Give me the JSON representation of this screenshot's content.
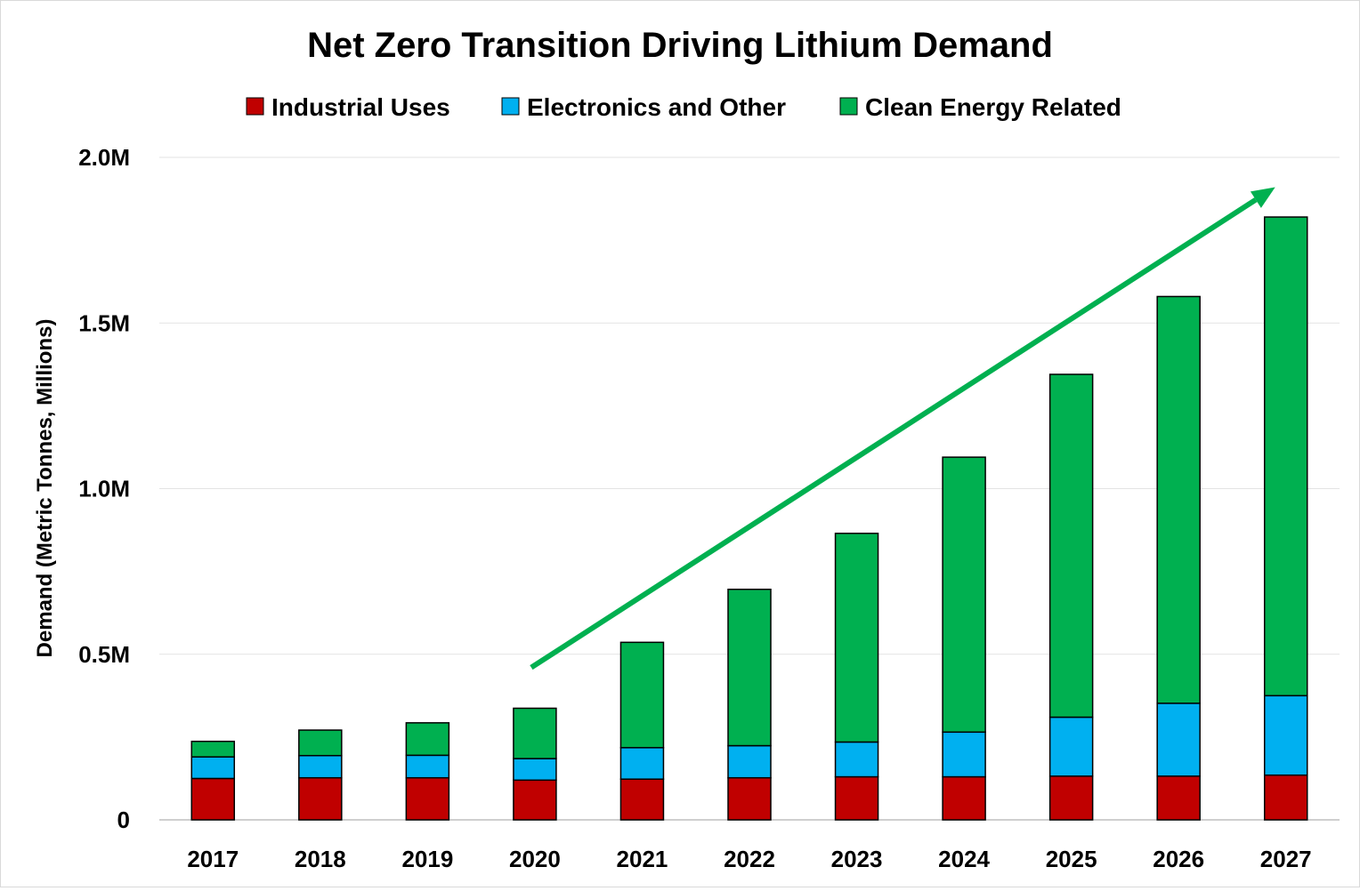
{
  "chart_data": {
    "type": "bar",
    "stacked": true,
    "title": "Net Zero Transition Driving Lithium Demand",
    "ylabel": "Demand (Metric Tonnes, Millions)",
    "xlabel": "",
    "categories": [
      "2017",
      "2018",
      "2019",
      "2020",
      "2021",
      "2022",
      "2023",
      "2024",
      "2025",
      "2026",
      "2027"
    ],
    "series": [
      {
        "name": "Industrial Uses",
        "color": "#c00000",
        "values": [
          0.125,
          0.127,
          0.127,
          0.12,
          0.123,
          0.127,
          0.13,
          0.13,
          0.132,
          0.132,
          0.135
        ]
      },
      {
        "name": "Electronics and Other",
        "color": "#00b0f0",
        "values": [
          0.065,
          0.067,
          0.068,
          0.065,
          0.095,
          0.097,
          0.105,
          0.135,
          0.178,
          0.22,
          0.24
        ]
      },
      {
        "name": "Clean Energy Related",
        "color": "#00b050",
        "values": [
          0.047,
          0.077,
          0.098,
          0.152,
          0.318,
          0.472,
          0.63,
          0.83,
          1.035,
          1.228,
          1.445
        ]
      }
    ],
    "ylim": [
      0,
      2.0
    ],
    "yticks": [
      0,
      0.5,
      1.0,
      1.5,
      2.0
    ],
    "ytick_labels": [
      "0",
      "0.5M",
      "1.0M",
      "1.5M",
      "2.0M"
    ],
    "grid": true,
    "legend_position": "top-center",
    "annotation": {
      "type": "trend-arrow",
      "color": "#00b050",
      "from": {
        "x": "2020",
        "y": 0.46
      },
      "to": {
        "x": "2027",
        "y": 1.91
      }
    }
  }
}
